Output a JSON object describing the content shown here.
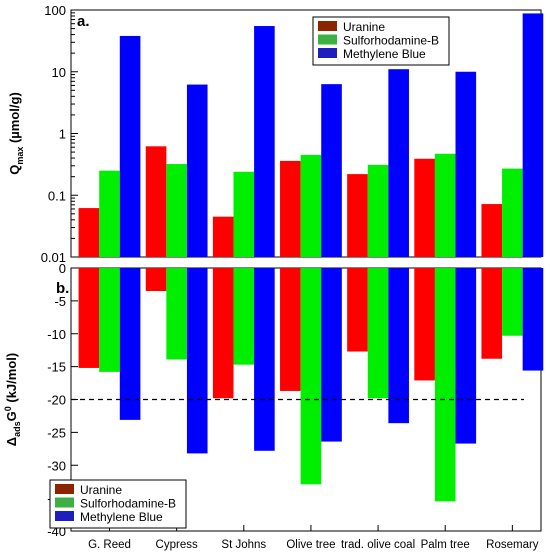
{
  "chart_data": [
    {
      "type": "bar",
      "panel_label": "a.",
      "ylabel_main": "Q",
      "ylabel_sub": "max",
      "ylabel_unit": " (µmol/g)",
      "yscale": "log",
      "ylim": [
        0.01,
        100
      ],
      "yticks": [
        "0.01",
        "0.1",
        "1",
        "10",
        "100"
      ],
      "categories": [
        "G. Reed",
        "Cypress",
        "St Johns",
        "Olive tree",
        "trad. olive coal",
        "Palm tree",
        "Rosemary"
      ],
      "series": [
        {
          "name": "Uranine",
          "color": "#ff0000",
          "values": [
            0.062,
            0.62,
            0.045,
            0.36,
            0.22,
            0.39,
            0.072
          ]
        },
        {
          "name": "Sulforhodamine-B",
          "color": "#00ee00",
          "values": [
            0.25,
            0.32,
            0.24,
            0.45,
            0.31,
            0.47,
            0.27
          ]
        },
        {
          "name": "Methylene Blue",
          "color": "#0000ff",
          "values": [
            38,
            6.2,
            55,
            6.3,
            11,
            10,
            88
          ]
        }
      ],
      "legend": {
        "position": "top-right",
        "swatches": [
          "#8b2500",
          "#3cb043",
          "#1e1ebe"
        ]
      }
    },
    {
      "type": "bar",
      "panel_label": "b.",
      "ylabel_main": "Δ",
      "ylabel_sub": "ads",
      "ylabel_rest": "G",
      "ylabel_sup": "0",
      "ylabel_unit": " (kJ/mol)",
      "ylim": [
        -40,
        0
      ],
      "yticks": [
        "0",
        "-5",
        "-10",
        "-15",
        "-20",
        "-25",
        "-30",
        "-35",
        "-40"
      ],
      "reference_line": -20,
      "categories": [
        "G. Reed",
        "Cypress",
        "St Johns",
        "Olive tree",
        "trad. olive coal",
        "Palm tree",
        "Rosemary"
      ],
      "series": [
        {
          "name": "Uranine",
          "color": "#ff0000",
          "values": [
            -15.2,
            -3.5,
            -19.8,
            -18.7,
            -12.7,
            -17.1,
            -13.8
          ]
        },
        {
          "name": "Sulforhodamine-B",
          "color": "#00ee00",
          "values": [
            -15.8,
            -13.9,
            -14.7,
            -32.9,
            -19.8,
            -35.5,
            -10.3
          ]
        },
        {
          "name": "Methylene Blue",
          "color": "#0000ff",
          "values": [
            -23.1,
            -28.2,
            -27.8,
            -26.4,
            -23.6,
            -26.7,
            -15.6
          ]
        }
      ],
      "legend": {
        "position": "bottom-left",
        "swatches": [
          "#8b2500",
          "#3cb043",
          "#1e1ebe"
        ]
      }
    }
  ]
}
